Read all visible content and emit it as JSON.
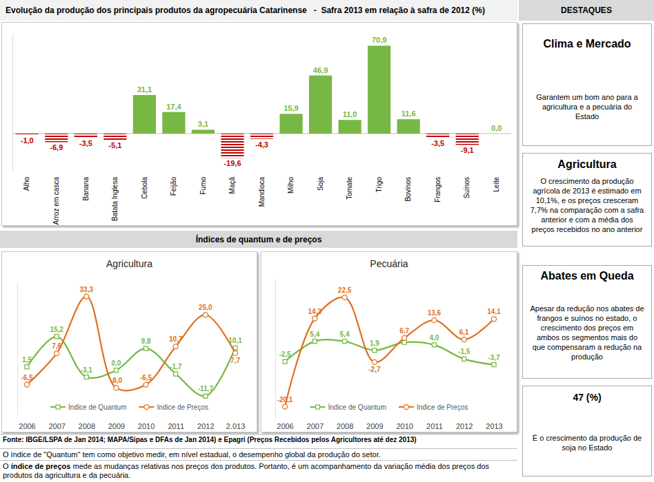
{
  "chart_data": [
    {
      "type": "bar",
      "title": "Evolução da produção dos principais produtos da agropecuária Catarinense   -  Safra 2013 em relação à safra de 2012 (%)",
      "categories": [
        "Alho",
        "Arroz em casca",
        "Banana",
        "Batata Inglesa",
        "Cebola",
        "Feijão",
        "Fumo",
        "Maçã",
        "Mandioca",
        "Milho",
        "Soja",
        "Tomate",
        "Trigo",
        "Bovinos",
        "Frangos",
        "Suínos",
        "Leite"
      ],
      "values": [
        -1.0,
        -6.9,
        -3.5,
        -5.1,
        31.1,
        17.4,
        3.1,
        -19.6,
        -4.3,
        15.9,
        46.9,
        11.0,
        70.9,
        11.6,
        -3.5,
        -9.1,
        0.0
      ],
      "value_labels": [
        "-1,0",
        "-6,9",
        "-3,5",
        "-5,1",
        "31,1",
        "17,4",
        "3,1",
        "-19,6",
        "-4,3",
        "15,9",
        "46,9",
        "11,0",
        "70,9",
        "11,6",
        "-3,5",
        "-9,1",
        "0,0"
      ],
      "colors": [
        "#c00000",
        "#c00000",
        "#c00000",
        "#c00000",
        "#77b743",
        "#77b743",
        "#77b743",
        "#c00000",
        "#c00000",
        "#77b743",
        "#77b743",
        "#77b743",
        "#77b743",
        "#77b743",
        "#c00000",
        "#c00000",
        "#77b743"
      ],
      "ylim": [
        -30,
        80
      ],
      "yticks": [
        0
      ],
      "tick_labels": "x",
      "data_labels": true
    },
    {
      "type": "line",
      "title": "Agricultura",
      "categories": [
        "2006",
        "2007",
        "2008",
        "2009",
        "2010",
        "2011",
        "2012",
        "2.013"
      ],
      "series": [
        {
          "name": "Índice de Quantum",
          "color": "#77b743",
          "marker": "square",
          "line_style": "smooth",
          "values": [
            1.5,
            15.2,
            -3.1,
            0.0,
            9.8,
            -1.7,
            -11.7,
            10.1
          ],
          "value_labels": [
            "1,5",
            "15,2",
            "-3,1",
            "0,0",
            "9,8",
            "-1,7",
            "-11,7",
            "10,1"
          ]
        },
        {
          "name": "Indice de Preços",
          "color": "#e07020",
          "marker": "circle",
          "line_style": "smooth",
          "values": [
            -6.5,
            7.6,
            33.3,
            -8.0,
            -6.5,
            10.7,
            25.0,
            7.7
          ],
          "value_labels": [
            "-6,5",
            "7,6",
            "33,3",
            "-8,0",
            "-6,5",
            "10,7",
            "25,0",
            "7,7"
          ]
        }
      ],
      "ylim": [
        -20,
        40
      ],
      "yticks": [],
      "tick_labels": "x",
      "data_labels": true,
      "legend": "bottom"
    },
    {
      "type": "line",
      "title": "Pecuária",
      "categories": [
        "2006",
        "2007",
        "2008",
        "2009",
        "2010",
        "2011",
        "2012",
        "2013"
      ],
      "series": [
        {
          "name": "Índice de Quantum",
          "color": "#77b743",
          "marker": "square",
          "line_style": "smooth",
          "values": [
            -2.5,
            5.4,
            5.4,
            1.9,
            5.0,
            4.0,
            -1.5,
            -3.7
          ],
          "value_labels": [
            "-2,5",
            "5,4",
            "5,4",
            "1,9",
            null,
            "4,0",
            "-1,5",
            "-3,7"
          ]
        },
        {
          "name": "Indice de Preços",
          "color": "#e07020",
          "marker": "circle",
          "line_style": "smooth",
          "values": [
            -20.1,
            14.3,
            22.5,
            -2.7,
            6.7,
            13.6,
            6.1,
            14.1
          ],
          "value_labels": [
            "-20,1",
            "14,3",
            "22,5",
            "-2,7",
            "6,7",
            "13,6",
            "6,1",
            "14,1"
          ]
        }
      ],
      "ylim": [
        -25,
        30
      ],
      "yticks": [],
      "tick_labels": "x",
      "data_labels": true,
      "legend": "bottom"
    }
  ],
  "section_title": "Índices de quantum e de preços",
  "destaques": {
    "header": "DESTAQUES",
    "boxes": [
      {
        "title": "Clima e Mercado",
        "text": "Garantem um bom ano para a agricultura e a pecuária do Estado"
      },
      {
        "title": "Agricultura",
        "text": "O crescimento da produção agrícola de 2013 é estimado em 10,1%, e os preços cresceram 7,7% na comparação com a safra anterior e com a média dos preços recebidos no ano anterior"
      },
      {
        "title": "Abates em Queda",
        "text": "Apesar da redução nos abates de frangos e suínos no estado, o crescimento dos preços em ambos os segmentos mais do que compensaram a redução na produção"
      },
      {
        "title": "47 (%)",
        "text": "É o crescimento da produção de soja no Estado"
      }
    ]
  },
  "footer": {
    "source": "Fonte: IBGE/LSPA de Jan 2014; MAPA/Sipas e DFAs de Jan 2014) e Epagri (Preços Recebidos pelos Agricultores até dez 2013)",
    "quantum_note": "O índice de \"Quantum\" tem como objetivo medir, em nível estadual, o desempenho global da produção do setor.",
    "price_note": {
      "lead": "O ",
      "term": "índice de preços",
      "rest": " mede as mudanças relativas nos preços dos produtos. Portanto, é um acompanhamento da variação média dos preços dos produtos da agricultura e da pecuária."
    }
  }
}
